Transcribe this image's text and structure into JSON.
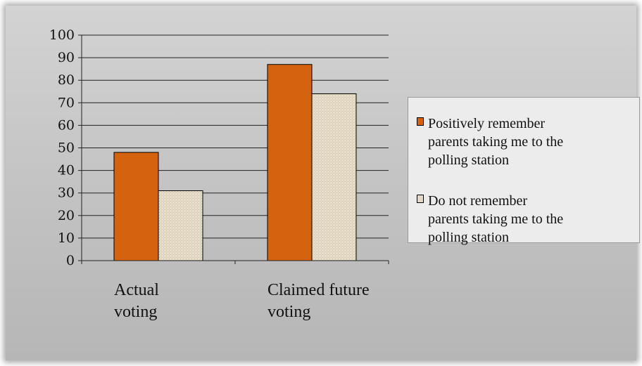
{
  "chart_data": {
    "type": "bar",
    "categories": [
      [
        "Actual",
        "voting"
      ],
      [
        "Claimed future",
        "voting"
      ]
    ],
    "series": [
      {
        "name": "Positively remember parents taking me to the polling station",
        "values": [
          48,
          87
        ],
        "color": "#d4620e"
      },
      {
        "name": "Do not remember parents taking me to the polling station",
        "values": [
          31,
          74
        ],
        "color": "#e3d9c4"
      }
    ],
    "ylim": [
      0,
      100
    ],
    "yticks": [
      "0",
      "10",
      "20",
      "30",
      "40",
      "50",
      "60",
      "70",
      "80",
      "90",
      "100"
    ],
    "grid": true,
    "legend_position": "right",
    "legend_labels": [
      [
        "Positively remember",
        "parents taking me to the",
        "polling station"
      ],
      [
        "Do not remember",
        "parents taking me to the",
        "polling station"
      ]
    ]
  }
}
